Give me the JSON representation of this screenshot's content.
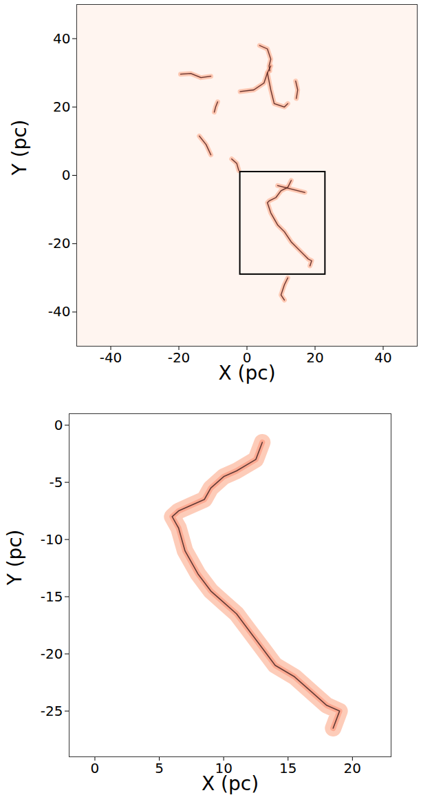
{
  "chart_data": [
    {
      "type": "line",
      "xlabel": "X (pc)",
      "ylabel": "Y (pc)",
      "xlim": [
        -50,
        50
      ],
      "ylim": [
        -50,
        50
      ],
      "xticks": [
        -40,
        -20,
        0,
        20,
        40
      ],
      "yticks": [
        -40,
        -20,
        0,
        20,
        40
      ],
      "color": "#3b1f1f",
      "box": {
        "x": [
          -2,
          23
        ],
        "y": [
          -29,
          1
        ]
      },
      "series": [
        {
          "x": [
            3.7,
            6,
            7,
            6.5,
            6.7
          ],
          "y": [
            38,
            37,
            34,
            32,
            30.6
          ]
        },
        {
          "x": [
            -19.5,
            -16.5,
            -13.5,
            -10.6
          ],
          "y": [
            29.6,
            29.8,
            28.6,
            29
          ]
        },
        {
          "x": [
            -2,
            2,
            5,
            6,
            7
          ],
          "y": [
            24.5,
            25,
            27,
            30,
            32
          ]
        },
        {
          "x": [
            6,
            7,
            8,
            11,
            12
          ],
          "y": [
            30,
            25,
            21,
            20,
            21
          ]
        },
        {
          "x": [
            14.3,
            14.9,
            14.5
          ],
          "y": [
            27.6,
            25,
            22.5
          ]
        },
        {
          "x": [
            -8.6,
            -9.2,
            -9.6
          ],
          "y": [
            21.5,
            20,
            18.5
          ]
        },
        {
          "x": [
            -14,
            -12,
            -10.6
          ],
          "y": [
            11.5,
            9,
            6
          ]
        },
        {
          "x": [
            -4.5,
            -3,
            -2.4
          ],
          "y": [
            4.8,
            3.5,
            1.4
          ]
        },
        {
          "x": [
            13,
            12,
            10,
            8.5,
            6.5,
            6,
            7,
            9,
            11,
            13,
            15.5,
            18,
            19,
            18.5
          ],
          "y": [
            -1.5,
            -3.5,
            -4.5,
            -6.5,
            -7.5,
            -8,
            -11,
            -14.5,
            -16.5,
            -19.5,
            -22,
            -24.5,
            -25,
            -26.5
          ]
        },
        {
          "x": [
            9,
            13,
            17
          ],
          "y": [
            -3,
            -4,
            -5
          ]
        },
        {
          "x": [
            12,
            11,
            10,
            11
          ],
          "y": [
            -30,
            -32,
            -35,
            -36.5
          ]
        }
      ]
    },
    {
      "type": "line",
      "xlabel": "X (pc)",
      "ylabel": "Y (pc)",
      "xlim": [
        -2,
        23
      ],
      "ylim": [
        -29,
        1
      ],
      "xticks": [
        0,
        5,
        10,
        15,
        20
      ],
      "yticks": [
        -25,
        -20,
        -15,
        -10,
        -5,
        0
      ],
      "color": "#3b1f1f",
      "series": [
        {
          "x": [
            13,
            12.5,
            11,
            10,
            9,
            8.5,
            7.5,
            6.5,
            6,
            6.5,
            7,
            8,
            9,
            10,
            11,
            12,
            13,
            14,
            15.5,
            17,
            18,
            19,
            18.5
          ],
          "y": [
            -1.5,
            -3,
            -4,
            -4.5,
            -5.5,
            -6.5,
            -7,
            -7.5,
            -8,
            -9,
            -11,
            -13,
            -14.5,
            -15.5,
            -16.5,
            -18,
            -19.5,
            -21,
            -22,
            -23.5,
            -24.5,
            -25,
            -26.5
          ]
        }
      ]
    }
  ]
}
